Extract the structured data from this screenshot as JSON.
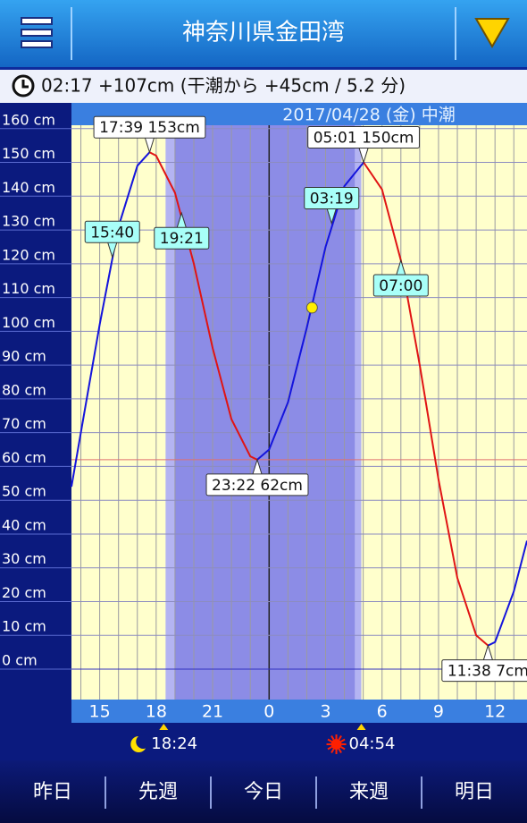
{
  "header": {
    "title": "神奈川県金田湾"
  },
  "status": {
    "text": "02:17 +107cm (干潮から +45cm / 5.2 分)"
  },
  "footer": {
    "buttons": [
      "昨日",
      "先週",
      "今日",
      "来週",
      "明日"
    ]
  },
  "chart_data": {
    "type": "line",
    "title": "2017/04/28 (金) 中潮",
    "x": [
      -10.5,
      -10,
      -9,
      -8,
      -7,
      -6.35,
      -6,
      -5,
      -4,
      -3,
      -2,
      -1,
      -0.63,
      0,
      1,
      2,
      3,
      4,
      5.02,
      6,
      7,
      8,
      9,
      10,
      11,
      11.63,
      12,
      13,
      13.7
    ],
    "values": [
      54,
      70,
      102,
      131,
      149,
      153,
      152,
      141,
      120,
      95,
      74,
      63,
      62,
      65,
      79,
      101,
      125,
      143,
      150,
      142,
      121,
      90,
      56,
      27,
      10,
      7,
      8,
      23,
      38
    ],
    "rise_color": "#1414dc",
    "fall_color": "#e01414",
    "xlim": [
      -10.5,
      13.7
    ],
    "ylim": [
      -9,
      161
    ],
    "xticks": [
      {
        "value": -9,
        "label": "15"
      },
      {
        "value": -6,
        "label": "18"
      },
      {
        "value": -3,
        "label": "21"
      },
      0,
      3,
      6,
      9,
      12
    ],
    "xgrid": [
      -10,
      -9,
      -8,
      -7,
      -6,
      -5,
      -4,
      -3,
      -2,
      -1,
      0,
      1,
      2,
      3,
      4,
      5,
      6,
      7,
      8,
      9,
      10,
      11,
      12,
      13
    ],
    "yticks": [
      {
        "value": 0,
        "label": "0 cm"
      },
      {
        "value": 10,
        "label": "10 cm"
      },
      {
        "value": 20,
        "label": "20 cm"
      },
      {
        "value": 30,
        "label": "30 cm"
      },
      {
        "value": 40,
        "label": "40 cm"
      },
      {
        "value": 50,
        "label": "50 cm"
      },
      {
        "value": 60,
        "label": "60 cm"
      },
      {
        "value": 70,
        "label": "70 cm"
      },
      {
        "value": 80,
        "label": "80 cm"
      },
      {
        "value": 90,
        "label": "90 cm"
      },
      {
        "value": 100,
        "label": "100 cm"
      },
      {
        "value": 110,
        "label": "110 cm"
      },
      {
        "value": 120,
        "label": "120 cm"
      },
      {
        "value": 130,
        "label": "130 cm"
      },
      {
        "value": 140,
        "label": "140 cm"
      },
      {
        "value": 150,
        "label": "150 cm"
      },
      {
        "value": 160,
        "label": "160 cm"
      }
    ],
    "grid": true,
    "reference_lines": [
      {
        "y": 62,
        "color": "#e07070"
      },
      {
        "y": 0,
        "color": "#3030c0"
      }
    ],
    "night_bands": [
      {
        "from": -5.5,
        "to": 4.9,
        "color": "#b4b4f2"
      },
      {
        "from": -5.02,
        "to": 4.55,
        "color": "#8c8ce6"
      }
    ],
    "annotations": [
      {
        "text": "17:39 153cm",
        "x": -6.35,
        "y": 153,
        "placement": "above",
        "color": "#ffffff"
      },
      {
        "text": "23:22 62cm",
        "x": -0.63,
        "y": 62,
        "placement": "below",
        "color": "#ffffff"
      },
      {
        "text": "05:01 150cm",
        "x": 5.02,
        "y": 150,
        "placement": "above",
        "color": "#ffffff"
      },
      {
        "text": "11:38 7cm",
        "x": 11.63,
        "y": 7,
        "placement": "below",
        "color": "#ffffff"
      },
      {
        "text": "15:40",
        "x": -8.33,
        "y": 122,
        "placement": "above",
        "color": "#a8fff8"
      },
      {
        "text": "19:21",
        "x": -4.65,
        "y": 135,
        "placement": "below",
        "color": "#a8fff8"
      },
      {
        "text": "03:19",
        "x": 3.32,
        "y": 132,
        "placement": "above",
        "color": "#a8fff8"
      },
      {
        "text": "07:00",
        "x": 7,
        "y": 121,
        "placement": "below",
        "color": "#a8fff8"
      }
    ],
    "current": {
      "x": 2.28,
      "y": 107,
      "color": "#ffee00"
    },
    "moon": {
      "label": "18:24",
      "x": -5.6
    },
    "sun": {
      "label": "04:54",
      "x": 4.9
    }
  }
}
